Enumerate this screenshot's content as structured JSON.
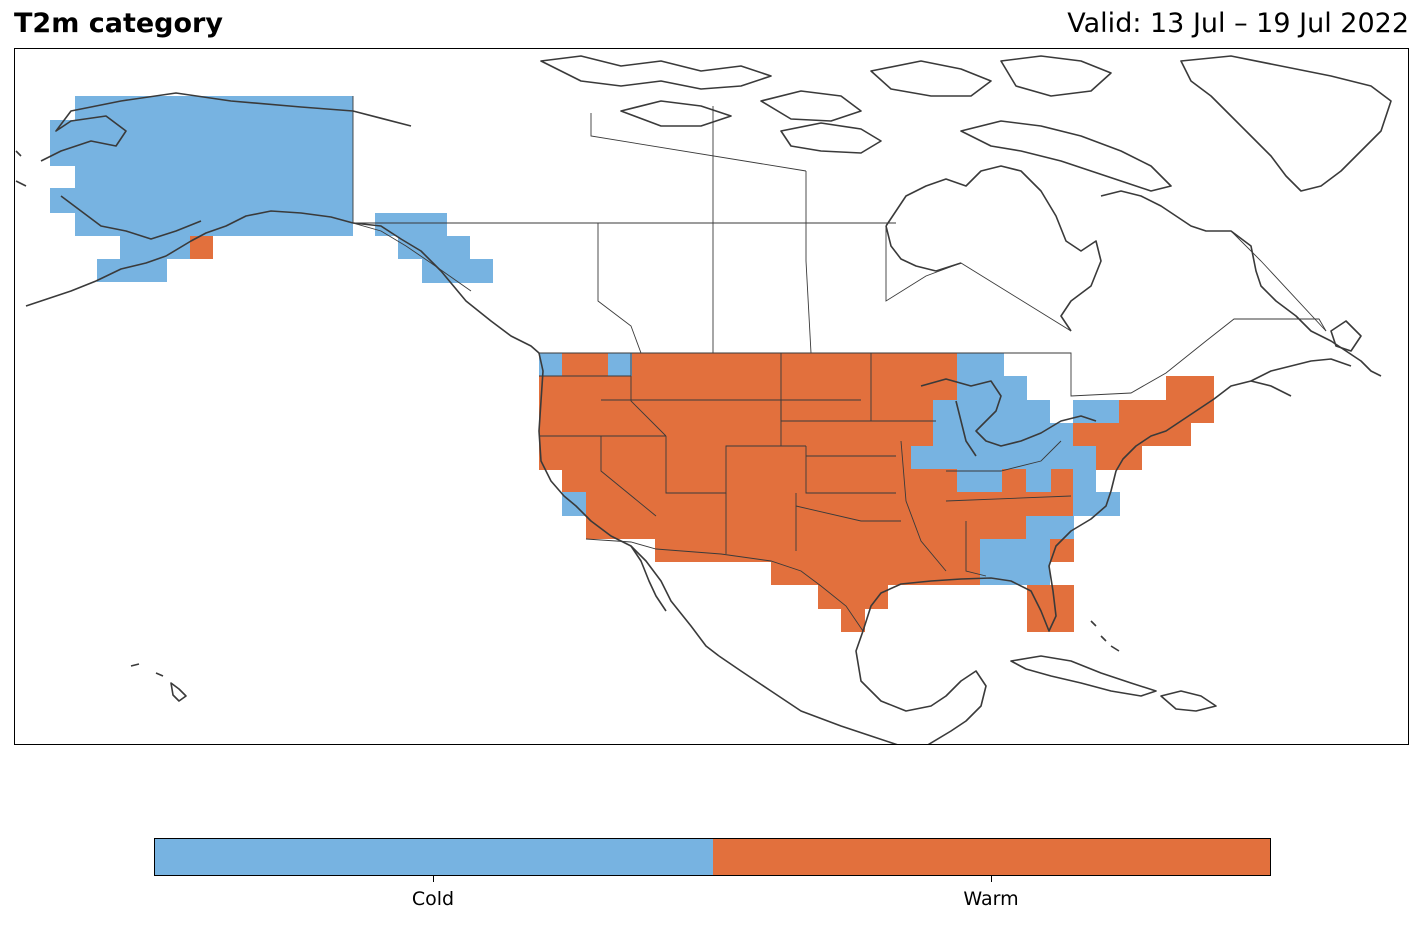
{
  "title": "T2m category",
  "valid": "Valid: 13 Jul – 19 Jul 2022",
  "legend": {
    "categories": [
      {
        "label": "Cold",
        "color": "#77b3e1"
      },
      {
        "label": "Warm",
        "color": "#e2703d"
      }
    ]
  },
  "colors": {
    "cold": "#77b3e1",
    "warm": "#e2703d",
    "coastline": "#3a3a3a",
    "border": "#3a3a3a"
  },
  "map_data": {
    "type": "categorical-grid",
    "region": "North America",
    "regions_cold": [
      "Alaska (most)",
      "Alaska panhandle",
      "NW Washington coast",
      "central California coast",
      "Great Lakes / Michigan / Wisconsin",
      "Ohio Valley",
      "Mid-Atlantic coast",
      "Georgia / north Florida",
      "western New York"
    ],
    "regions_warm": [
      "Western US",
      "Great Plains",
      "Texas",
      "Gulf Coast",
      "Southeast",
      "New England",
      "south Florida",
      "Kenai Peninsula"
    ]
  }
}
